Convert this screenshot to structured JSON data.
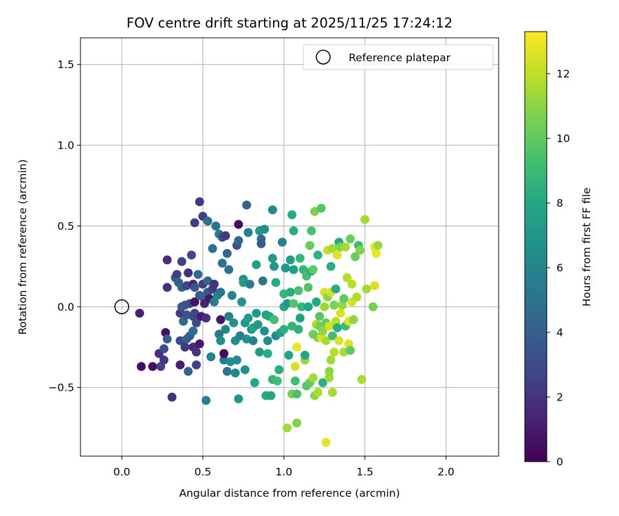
{
  "chart_data": {
    "type": "scatter",
    "title": "FOV centre drift starting at 2025/11/25 17:24:12",
    "xlabel": "Angular distance from reference (arcmin)",
    "ylabel": "Rotation from reference (arcmin)",
    "xlim": [
      -0.255,
      2.325
    ],
    "ylim": [
      -0.925,
      1.665
    ],
    "xticks": [
      0.0,
      0.5,
      1.0,
      1.5,
      2.0
    ],
    "xtick_labels": [
      "0.0",
      "0.5",
      "1.0",
      "1.5",
      "2.0"
    ],
    "yticks": [
      -0.5,
      0.0,
      0.5,
      1.0,
      1.5
    ],
    "ytick_labels": [
      "−0.5",
      "0.0",
      "0.5",
      "1.0",
      "1.5"
    ],
    "grid": true,
    "legend": {
      "placement": "top-right",
      "entries": [
        "Reference platepar"
      ]
    },
    "reference_point": {
      "x": 0.0,
      "y": 0.0,
      "label": "Reference platepar"
    },
    "colorbar": {
      "label": "Hours from first FF file",
      "colormap": "viridis",
      "range": [
        0,
        13.3
      ],
      "ticks": [
        0,
        2,
        4,
        6,
        8,
        10,
        12
      ],
      "tick_labels": [
        "0",
        "2",
        "4",
        "6",
        "8",
        "10",
        "12"
      ]
    },
    "series": [
      {
        "name": "FOV centre drift",
        "fields": [
          "x_arcmin",
          "y_arcmin",
          "hours"
        ],
        "points": [
          [
            0.11,
            -0.04,
            1.2
          ],
          [
            0.12,
            -0.37,
            0.4
          ],
          [
            0.19,
            -0.37,
            0.5
          ],
          [
            0.23,
            -0.29,
            1.8
          ],
          [
            0.24,
            -0.37,
            2.6
          ],
          [
            0.26,
            -0.33,
            2.2
          ],
          [
            0.26,
            -0.26,
            3.2
          ],
          [
            0.27,
            -0.16,
            0.6
          ],
          [
            0.28,
            -0.2,
            4.0
          ],
          [
            0.28,
            0.12,
            1.8
          ],
          [
            0.28,
            0.29,
            1.7
          ],
          [
            0.31,
            -0.56,
            1.9
          ],
          [
            0.33,
            0.18,
            3.6
          ],
          [
            0.34,
            0.2,
            2.4
          ],
          [
            0.35,
            0.15,
            4.2
          ],
          [
            0.36,
            -0.36,
            1.2
          ],
          [
            0.36,
            -0.21,
            2.9
          ],
          [
            0.36,
            -0.04,
            2.3
          ],
          [
            0.37,
            0.0,
            3.5
          ],
          [
            0.37,
            0.12,
            4.4
          ],
          [
            0.37,
            0.28,
            2.5
          ],
          [
            0.38,
            -0.09,
            4.6
          ],
          [
            0.39,
            -0.25,
            2.1
          ],
          [
            0.39,
            0.01,
            3.6
          ],
          [
            0.4,
            -0.2,
            4.2
          ],
          [
            0.4,
            -0.05,
            3.4
          ],
          [
            0.4,
            0.13,
            2.6
          ],
          [
            0.41,
            -0.4,
            4.4
          ],
          [
            0.41,
            0.21,
            1.8
          ],
          [
            0.42,
            -0.18,
            3.9
          ],
          [
            0.42,
            0.02,
            3.0
          ],
          [
            0.43,
            0.32,
            2.8
          ],
          [
            0.44,
            -0.25,
            1.6
          ],
          [
            0.44,
            -0.15,
            4.8
          ],
          [
            0.44,
            -0.06,
            3.1
          ],
          [
            0.44,
            0.14,
            1.3
          ],
          [
            0.45,
            -0.04,
            2.7
          ],
          [
            0.45,
            0.03,
            0.6
          ],
          [
            0.45,
            0.12,
            3.5
          ],
          [
            0.45,
            0.52,
            2.4
          ],
          [
            0.46,
            -0.36,
            2.6
          ],
          [
            0.46,
            -0.28,
            2.0
          ],
          [
            0.46,
            -0.1,
            2.9
          ],
          [
            0.47,
            0.2,
            4.8
          ],
          [
            0.48,
            0.65,
            2.2
          ],
          [
            0.48,
            -0.23,
            0.9
          ],
          [
            0.48,
            0.07,
            3.7
          ],
          [
            0.49,
            -0.06,
            1.0
          ],
          [
            0.5,
            0.06,
            4.2
          ],
          [
            0.5,
            0.14,
            2.5
          ],
          [
            0.5,
            0.56,
            2.4
          ],
          [
            0.51,
            0.02,
            1.4
          ],
          [
            0.52,
            -0.58,
            5.6
          ],
          [
            0.52,
            -0.07,
            1.9
          ],
          [
            0.53,
            0.09,
            3.8
          ],
          [
            0.53,
            0.16,
            4.4
          ],
          [
            0.53,
            0.53,
            4.9
          ],
          [
            0.54,
            0.05,
            0.9
          ],
          [
            0.55,
            -0.31,
            5.9
          ],
          [
            0.56,
            0.36,
            4.8
          ],
          [
            0.56,
            0.11,
            2.2
          ],
          [
            0.57,
            0.03,
            5.6
          ],
          [
            0.57,
            0.14,
            2.0
          ],
          [
            0.58,
            0.5,
            5.0
          ],
          [
            0.59,
            0.07,
            6.1
          ],
          [
            0.6,
            -0.17,
            5.3
          ],
          [
            0.6,
            0.45,
            5.4
          ],
          [
            0.61,
            0.09,
            5.1
          ],
          [
            0.61,
            -0.08,
            0.8
          ],
          [
            0.61,
            -0.21,
            6.5
          ],
          [
            0.62,
            0.27,
            4.9
          ],
          [
            0.62,
            0.43,
            3.0
          ],
          [
            0.63,
            -0.33,
            5.1
          ],
          [
            0.63,
            -0.29,
            0.4
          ],
          [
            0.64,
            0.44,
            2.3
          ],
          [
            0.64,
            -0.14,
            6.0
          ],
          [
            0.65,
            -0.4,
            5.2
          ],
          [
            0.65,
            0.33,
            4.4
          ],
          [
            0.66,
            0.23,
            5.0
          ],
          [
            0.66,
            -0.06,
            5.8
          ],
          [
            0.67,
            -0.34,
            6.4
          ],
          [
            0.68,
            0.07,
            5.9
          ],
          [
            0.69,
            -0.1,
            6.7
          ],
          [
            0.7,
            -0.41,
            6.2
          ],
          [
            0.7,
            -0.21,
            6.4
          ],
          [
            0.71,
            -0.33,
            6.2
          ],
          [
            0.71,
            0.38,
            3.4
          ],
          [
            0.72,
            0.51,
            0.4
          ],
          [
            0.72,
            -0.57,
            6.9
          ],
          [
            0.72,
            0.41,
            4.5
          ],
          [
            0.73,
            -0.18,
            5.6
          ],
          [
            0.74,
            0.03,
            6.8
          ],
          [
            0.75,
            0.17,
            6.2
          ],
          [
            0.75,
            0.15,
            7.4
          ],
          [
            0.76,
            -0.1,
            7.0
          ],
          [
            0.76,
            -0.39,
            6.6
          ],
          [
            0.77,
            0.63,
            4.3
          ],
          [
            0.77,
            -0.2,
            6.9
          ],
          [
            0.78,
            -0.07,
            7.3
          ],
          [
            0.78,
            0.46,
            5.7
          ],
          [
            0.79,
            0.14,
            5.6
          ],
          [
            0.8,
            -0.14,
            6.7
          ],
          [
            0.81,
            -0.13,
            7.9
          ],
          [
            0.81,
            -0.21,
            5.9
          ],
          [
            0.82,
            -0.47,
            7.9
          ],
          [
            0.83,
            0.26,
            7.5
          ],
          [
            0.83,
            -0.04,
            7.2
          ],
          [
            0.84,
            -0.11,
            7.1
          ],
          [
            0.85,
            0.47,
            7.0
          ],
          [
            0.85,
            -0.28,
            7.2
          ],
          [
            0.86,
            0.42,
            4.6
          ],
          [
            0.86,
            0.39,
            3.8
          ],
          [
            0.87,
            0.16,
            5.2
          ],
          [
            0.88,
            0.48,
            6.3
          ],
          [
            0.88,
            -0.15,
            6.6
          ],
          [
            0.89,
            -0.05,
            7.6
          ],
          [
            0.89,
            -0.55,
            8.1
          ],
          [
            0.9,
            -0.21,
            6.6
          ],
          [
            0.9,
            -0.29,
            8.2
          ],
          [
            0.91,
            -0.06,
            7.9
          ],
          [
            0.92,
            -0.55,
            7.9
          ],
          [
            0.93,
            -0.45,
            8.7
          ],
          [
            0.93,
            0.3,
            7.4
          ],
          [
            0.93,
            0.6,
            6.2
          ],
          [
            0.94,
            0.25,
            6.9
          ],
          [
            0.94,
            -0.08,
            9.3
          ],
          [
            0.95,
            -0.18,
            6.4
          ],
          [
            0.95,
            0.15,
            8.2
          ],
          [
            0.96,
            -0.46,
            9.2
          ],
          [
            0.97,
            -0.39,
            8.3
          ],
          [
            0.98,
            -0.16,
            7.6
          ],
          [
            0.99,
            0.4,
            5.8
          ],
          [
            1.0,
            0.0,
            8.0
          ],
          [
            1.0,
            0.08,
            8.7
          ],
          [
            1.0,
            -0.14,
            8.4
          ],
          [
            1.01,
            0.24,
            7.1
          ],
          [
            1.02,
            -0.75,
            11.5
          ],
          [
            1.02,
            0.02,
            7.0
          ],
          [
            1.03,
            -0.3,
            7.9
          ],
          [
            1.04,
            0.29,
            7.4
          ],
          [
            1.04,
            0.09,
            8.3
          ],
          [
            1.05,
            -0.12,
            8.7
          ],
          [
            1.05,
            -0.54,
            10.6
          ],
          [
            1.05,
            0.57,
            8.1
          ],
          [
            1.06,
            0.47,
            8.2
          ],
          [
            1.06,
            0.23,
            7.6
          ],
          [
            1.06,
            0.02,
            9.7
          ],
          [
            1.07,
            -0.46,
            9.1
          ],
          [
            1.07,
            -0.37,
            12.4
          ],
          [
            1.08,
            -0.25,
            12.9
          ],
          [
            1.08,
            -0.72,
            10.8
          ],
          [
            1.08,
            -0.54,
            9.4
          ],
          [
            1.09,
            0.1,
            9.5
          ],
          [
            1.09,
            -0.14,
            8.5
          ],
          [
            1.1,
            0.3,
            8.8
          ],
          [
            1.1,
            -0.07,
            7.6
          ],
          [
            1.11,
            0.0,
            8.8
          ],
          [
            1.12,
            0.23,
            8.8
          ],
          [
            1.13,
            -0.33,
            11.2
          ],
          [
            1.13,
            -0.3,
            7.9
          ],
          [
            1.14,
            0.19,
            9.3
          ],
          [
            1.14,
            -0.49,
            9.7
          ],
          [
            1.15,
            0.12,
            9.6
          ],
          [
            1.15,
            0.0,
            7.9
          ],
          [
            1.16,
            -0.47,
            10.1
          ],
          [
            1.16,
            0.38,
            10.2
          ],
          [
            1.17,
            0.22,
            8.1
          ],
          [
            1.17,
            0.47,
            9.4
          ],
          [
            1.18,
            -0.44,
            11.5
          ],
          [
            1.18,
            -0.17,
            10.4
          ],
          [
            1.18,
            0.23,
            10.0
          ],
          [
            1.19,
            -0.55,
            11.0
          ],
          [
            1.19,
            0.59,
            10.7
          ],
          [
            1.2,
            -0.11,
            11.7
          ],
          [
            1.2,
            0.03,
            8.0
          ],
          [
            1.21,
            0.32,
            8.5
          ],
          [
            1.21,
            -0.53,
            11.6
          ],
          [
            1.21,
            -0.19,
            10.2
          ],
          [
            1.22,
            -0.12,
            10.4
          ],
          [
            1.22,
            -0.06,
            9.8
          ],
          [
            1.23,
            -0.19,
            12.5
          ],
          [
            1.23,
            0.61,
            9.7
          ],
          [
            1.24,
            -0.47,
            8.4
          ],
          [
            1.24,
            -0.15,
            11.1
          ],
          [
            1.25,
            0.09,
            12.4
          ],
          [
            1.25,
            0.0,
            11.3
          ],
          [
            1.26,
            -0.21,
            11.6
          ],
          [
            1.26,
            -0.1,
            10.1
          ],
          [
            1.26,
            -0.84,
            12.8
          ],
          [
            1.27,
            0.35,
            12.0
          ],
          [
            1.27,
            0.06,
            11.0
          ],
          [
            1.28,
            -0.44,
            11.3
          ],
          [
            1.28,
            -0.4,
            11.0
          ],
          [
            1.28,
            -0.12,
            12.3
          ],
          [
            1.29,
            0.09,
            12.5
          ],
          [
            1.29,
            0.25,
            8.3
          ],
          [
            1.29,
            -0.33,
            11.4
          ],
          [
            1.3,
            -0.53,
            11.6
          ],
          [
            1.3,
            0.36,
            11.4
          ],
          [
            1.3,
            -0.18,
            9.1
          ],
          [
            1.31,
            -0.28,
            11.9
          ],
          [
            1.31,
            0.01,
            10.6
          ],
          [
            1.32,
            0.11,
            8.2
          ],
          [
            1.32,
            -0.09,
            11.9
          ],
          [
            1.33,
            0.32,
            12.6
          ],
          [
            1.33,
            -0.13,
            8.2
          ],
          [
            1.34,
            -0.21,
            12.5
          ],
          [
            1.34,
            0.4,
            8.1
          ],
          [
            1.35,
            -0.04,
            12.5
          ],
          [
            1.35,
            0.37,
            10.8
          ],
          [
            1.36,
            0.01,
            11.2
          ],
          [
            1.37,
            -0.28,
            11.6
          ],
          [
            1.37,
            0.05,
            10.0
          ],
          [
            1.38,
            0.37,
            11.5
          ],
          [
            1.38,
            -0.12,
            9.1
          ],
          [
            1.39,
            0.18,
            11.8
          ],
          [
            1.4,
            -0.09,
            12.6
          ],
          [
            1.4,
            -0.23,
            12.7
          ],
          [
            1.41,
            0.42,
            10.2
          ],
          [
            1.41,
            -0.27,
            9.9
          ],
          [
            1.42,
            0.14,
            11.9
          ],
          [
            1.42,
            0.03,
            12.4
          ],
          [
            1.43,
            -0.08,
            11.1
          ],
          [
            1.44,
            0.31,
            10.3
          ],
          [
            1.45,
            0.06,
            11.7
          ],
          [
            1.46,
            0.38,
            9.0
          ],
          [
            1.47,
            0.35,
            10.8
          ],
          [
            1.48,
            -0.45,
            11.6
          ],
          [
            1.5,
            0.54,
            11.5
          ],
          [
            1.51,
            0.11,
            11.5
          ],
          [
            1.55,
            0.0,
            10.6
          ],
          [
            1.56,
            0.13,
            12.5
          ],
          [
            1.56,
            0.37,
            12.9
          ],
          [
            1.57,
            0.33,
            12.9
          ],
          [
            1.58,
            0.38,
            11.2
          ]
        ]
      }
    ]
  }
}
